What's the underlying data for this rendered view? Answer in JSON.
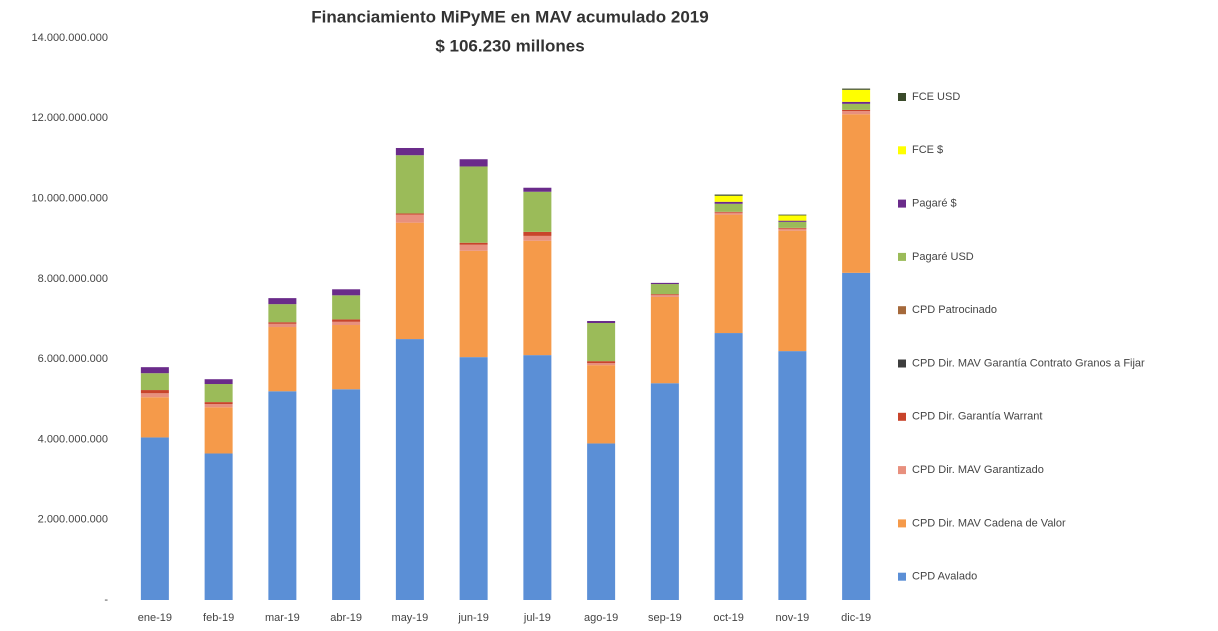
{
  "chart_data": {
    "type": "stacked_bar",
    "title": "Financiamiento MiPyME en MAV acumulado 2019",
    "subtitle": "$ 106.230 millones",
    "categories": [
      "ene-19",
      "feb-19",
      "mar-19",
      "abr-19",
      "may-19",
      "jun-19",
      "jul-19",
      "ago-19",
      "sep-19",
      "oct-19",
      "nov-19",
      "dic-19"
    ],
    "ylim": [
      0,
      14000000000
    ],
    "yticks": [
      {
        "value": 0,
        "label": "-"
      },
      {
        "value": 2000000000,
        "label": "2.000.000.000"
      },
      {
        "value": 4000000000,
        "label": "4.000.000.000"
      },
      {
        "value": 6000000000,
        "label": "6.000.000.000"
      },
      {
        "value": 8000000000,
        "label": "8.000.000.000"
      },
      {
        "value": 10000000000,
        "label": "10.000.000.000"
      },
      {
        "value": 12000000000,
        "label": "12.000.000.000"
      },
      {
        "value": 14000000000,
        "label": "14.000.000.000"
      }
    ],
    "grid": false,
    "legend": "right",
    "series": [
      {
        "name": "CPD Avalado",
        "color": "#5b8fd6",
        "values": [
          4050000000,
          3650000000,
          5200000000,
          5250000000,
          6500000000,
          6050000000,
          6100000000,
          3900000000,
          5400000000,
          6650000000,
          6200000000,
          8150000000
        ]
      },
      {
        "name": "CPD Dir. MAV Cadena de Valor",
        "color": "#f59a4a",
        "values": [
          1000000000,
          1150000000,
          1600000000,
          1600000000,
          2900000000,
          2650000000,
          2850000000,
          1950000000,
          2150000000,
          2950000000,
          3000000000,
          3950000000
        ]
      },
      {
        "name": "CPD Dir. MAV Garantizado",
        "color": "#e8907e",
        "values": [
          100000000,
          80000000,
          80000000,
          80000000,
          200000000,
          150000000,
          120000000,
          50000000,
          50000000,
          50000000,
          50000000,
          80000000
        ]
      },
      {
        "name": "CPD Dir. Garantía Warrant",
        "color": "#c8442b",
        "values": [
          80000000,
          50000000,
          40000000,
          60000000,
          30000000,
          50000000,
          100000000,
          50000000,
          20000000,
          20000000,
          20000000,
          30000000
        ]
      },
      {
        "name": "CPD Dir. MAV Garantía Contrato Granos a Fijar",
        "color": "#3d3d3d",
        "values": [
          0,
          0,
          0,
          0,
          0,
          0,
          0,
          0,
          0,
          0,
          0,
          0
        ]
      },
      {
        "name": "CPD Patrocinado",
        "color": "#a5693b",
        "values": [
          0,
          0,
          0,
          0,
          0,
          0,
          0,
          0,
          0,
          0,
          0,
          0
        ]
      },
      {
        "name": "Pagaré USD",
        "color": "#9bbb59",
        "values": [
          420000000,
          450000000,
          450000000,
          600000000,
          1450000000,
          1900000000,
          1000000000,
          950000000,
          250000000,
          200000000,
          150000000,
          150000000
        ]
      },
      {
        "name": "Pagaré $",
        "color": "#6a2b8a",
        "values": [
          150000000,
          120000000,
          150000000,
          150000000,
          180000000,
          180000000,
          100000000,
          50000000,
          30000000,
          50000000,
          30000000,
          50000000
        ]
      },
      {
        "name": "FCE  $",
        "color": "#ffff00",
        "values": [
          0,
          0,
          0,
          0,
          0,
          0,
          0,
          0,
          0,
          150000000,
          130000000,
          300000000
        ]
      },
      {
        "name": "FCE USD",
        "color": "#3a4a2a",
        "values": [
          0,
          0,
          0,
          0,
          0,
          0,
          0,
          0,
          0,
          30000000,
          20000000,
          30000000
        ]
      }
    ]
  }
}
